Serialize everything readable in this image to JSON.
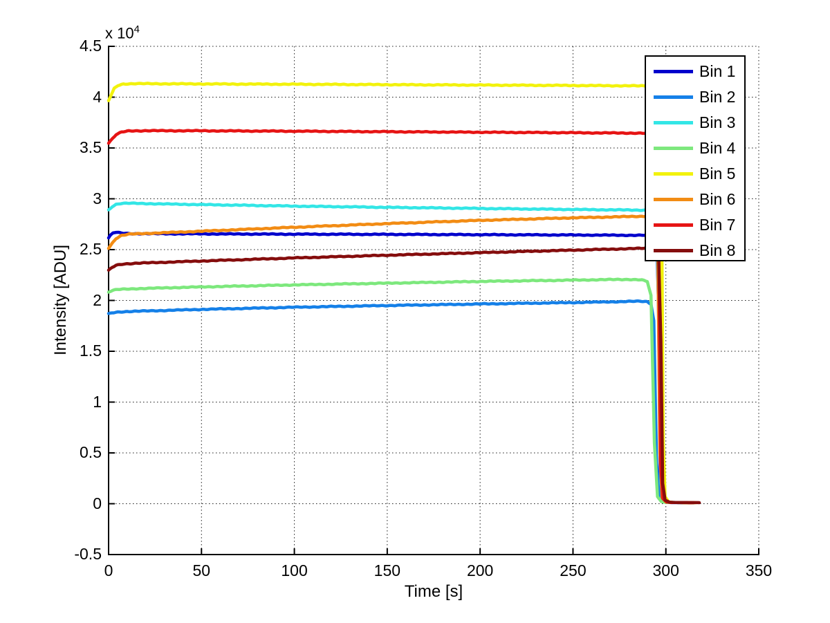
{
  "figure": {
    "background": "#ffffff",
    "axis_color": "#000000"
  },
  "chart_data": {
    "type": "line",
    "title": "",
    "xlabel": "Time [s]",
    "ylabel": "Intensity [ADU]",
    "y_scale_annotation": {
      "base": "x 10",
      "exponent": "4"
    },
    "xlim": [
      0,
      350
    ],
    "ylim_adu": [
      -5000,
      45000
    ],
    "xticks": [
      0,
      50,
      100,
      150,
      200,
      250,
      300,
      350
    ],
    "ytick_labels": [
      "-0.5",
      "0",
      "0.5",
      "1",
      "1.5",
      "2",
      "2.5",
      "3",
      "3.5",
      "4",
      "4.5"
    ],
    "ytick_values_adu": [
      -5000,
      0,
      5000,
      10000,
      15000,
      20000,
      25000,
      30000,
      35000,
      40000,
      45000
    ],
    "grid": true,
    "grid_style": "dotted",
    "legend": {
      "position": "northeast",
      "border_color": "#000000",
      "background": "#ffffff"
    },
    "series": [
      {
        "name": "Bin 1",
        "color": "#0000CC",
        "points": [
          [
            0,
            26150
          ],
          [
            1,
            26400
          ],
          [
            2.5,
            26650
          ],
          [
            4,
            26700
          ],
          [
            7,
            26620
          ],
          [
            12,
            26570
          ],
          [
            30,
            26560
          ],
          [
            60,
            26540
          ],
          [
            100,
            26520
          ],
          [
            150,
            26500
          ],
          [
            200,
            26470
          ],
          [
            250,
            26440
          ],
          [
            285,
            26410
          ],
          [
            293,
            26410
          ],
          [
            295,
            26380
          ],
          [
            296,
            20000
          ],
          [
            297,
            2500
          ],
          [
            298,
            400
          ],
          [
            300,
            150
          ],
          [
            303,
            110
          ],
          [
            313,
            95
          ]
        ]
      },
      {
        "name": "Bin 2",
        "color": "#1580E8",
        "points": [
          [
            0,
            18680
          ],
          [
            2,
            18780
          ],
          [
            5,
            18860
          ],
          [
            10,
            18910
          ],
          [
            50,
            19120
          ],
          [
            100,
            19330
          ],
          [
            150,
            19500
          ],
          [
            200,
            19650
          ],
          [
            250,
            19790
          ],
          [
            275,
            19880
          ],
          [
            286,
            19920
          ],
          [
            290,
            19880
          ],
          [
            292,
            19650
          ],
          [
            293.5,
            18000
          ],
          [
            295,
            4000
          ],
          [
            296.5,
            600
          ],
          [
            298,
            250
          ],
          [
            301,
            130
          ],
          [
            314,
            95
          ]
        ]
      },
      {
        "name": "Bin 3",
        "color": "#33E6E6",
        "points": [
          [
            0,
            28900
          ],
          [
            2,
            29250
          ],
          [
            4,
            29450
          ],
          [
            7,
            29550
          ],
          [
            12,
            29560
          ],
          [
            30,
            29490
          ],
          [
            60,
            29400
          ],
          [
            100,
            29280
          ],
          [
            150,
            29160
          ],
          [
            200,
            29050
          ],
          [
            250,
            28950
          ],
          [
            285,
            28890
          ],
          [
            293,
            28870
          ],
          [
            295,
            28750
          ],
          [
            296.2,
            18000
          ],
          [
            297.4,
            2000
          ],
          [
            298.6,
            350
          ],
          [
            301,
            140
          ],
          [
            315,
            95
          ]
        ]
      },
      {
        "name": "Bin 4",
        "color": "#7DE87D",
        "points": [
          [
            0,
            20820
          ],
          [
            2,
            20980
          ],
          [
            5,
            21080
          ],
          [
            15,
            21160
          ],
          [
            50,
            21330
          ],
          [
            100,
            21530
          ],
          [
            150,
            21700
          ],
          [
            200,
            21870
          ],
          [
            250,
            22000
          ],
          [
            268,
            22050
          ],
          [
            281,
            22070
          ],
          [
            287,
            22020
          ],
          [
            290,
            21850
          ],
          [
            292,
            20500
          ],
          [
            293.8,
            6000
          ],
          [
            295.5,
            700
          ],
          [
            297.5,
            220
          ],
          [
            300,
            130
          ],
          [
            313,
            95
          ]
        ]
      },
      {
        "name": "Bin 5",
        "color": "#F2F20D",
        "points": [
          [
            0,
            39650
          ],
          [
            1.5,
            40250
          ],
          [
            3,
            40850
          ],
          [
            5,
            41150
          ],
          [
            8,
            41300
          ],
          [
            15,
            41330
          ],
          [
            50,
            41300
          ],
          [
            100,
            41270
          ],
          [
            150,
            41230
          ],
          [
            200,
            41190
          ],
          [
            250,
            41150
          ],
          [
            285,
            41110
          ],
          [
            294,
            41100
          ],
          [
            296.5,
            41000
          ],
          [
            297.6,
            32000
          ],
          [
            298.6,
            6000
          ],
          [
            299.6,
            700
          ],
          [
            301.5,
            180
          ],
          [
            304,
            120
          ],
          [
            316,
            100
          ]
        ]
      },
      {
        "name": "Bin 6",
        "color": "#F28C14",
        "points": [
          [
            0,
            25150
          ],
          [
            2,
            25650
          ],
          [
            4,
            26100
          ],
          [
            7,
            26400
          ],
          [
            11,
            26520
          ],
          [
            20,
            26590
          ],
          [
            50,
            26810
          ],
          [
            100,
            27200
          ],
          [
            150,
            27560
          ],
          [
            200,
            27880
          ],
          [
            250,
            28130
          ],
          [
            280,
            28250
          ],
          [
            290,
            28290
          ],
          [
            294,
            28270
          ],
          [
            295.6,
            26000
          ],
          [
            296.8,
            5000
          ],
          [
            298,
            600
          ],
          [
            300,
            180
          ],
          [
            303,
            120
          ],
          [
            314,
            95
          ]
        ]
      },
      {
        "name": "Bin 7",
        "color": "#E61414",
        "points": [
          [
            0,
            35480
          ],
          [
            2,
            35900
          ],
          [
            4,
            36300
          ],
          [
            7,
            36560
          ],
          [
            11,
            36680
          ],
          [
            20,
            36700
          ],
          [
            50,
            36690
          ],
          [
            100,
            36650
          ],
          [
            150,
            36600
          ],
          [
            200,
            36550
          ],
          [
            250,
            36500
          ],
          [
            285,
            36460
          ],
          [
            293,
            36440
          ],
          [
            295,
            36420
          ],
          [
            296,
            28000
          ],
          [
            297.2,
            4000
          ],
          [
            298.4,
            500
          ],
          [
            300.5,
            170
          ],
          [
            303,
            120
          ],
          [
            315,
            100
          ]
        ]
      },
      {
        "name": "Bin 8",
        "color": "#850D0D",
        "points": [
          [
            0,
            22950
          ],
          [
            2,
            23250
          ],
          [
            4,
            23460
          ],
          [
            8,
            23590
          ],
          [
            15,
            23660
          ],
          [
            50,
            23880
          ],
          [
            100,
            24180
          ],
          [
            150,
            24450
          ],
          [
            200,
            24700
          ],
          [
            250,
            24950
          ],
          [
            280,
            25090
          ],
          [
            290,
            25140
          ],
          [
            294,
            25150
          ],
          [
            296,
            25090
          ],
          [
            297.3,
            16000
          ],
          [
            298.3,
            2000
          ],
          [
            299.6,
            350
          ],
          [
            302,
            150
          ],
          [
            305,
            120
          ],
          [
            318,
            105
          ]
        ]
      }
    ]
  },
  "layout_note": "values in ADU; axis displayed as value/10^4"
}
